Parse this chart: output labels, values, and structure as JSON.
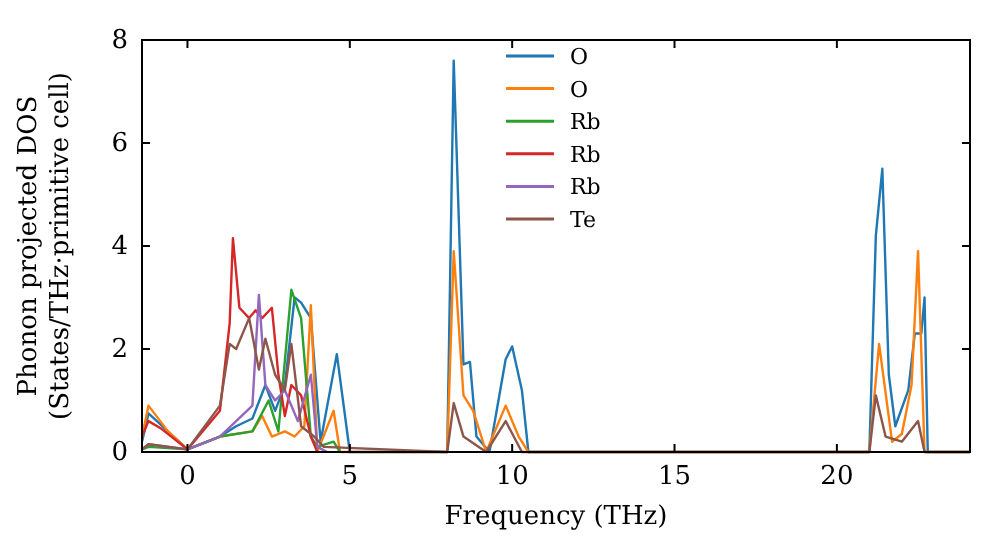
{
  "chart_data": {
    "type": "line",
    "xlabel": "Frequency (THz)",
    "ylabel": "Phonon projected DOS\n(States/THz·primitive cell)",
    "xlim": [
      -1.4,
      24.1
    ],
    "ylim": [
      0,
      8
    ],
    "xticks": [
      0,
      5,
      10,
      15,
      20
    ],
    "yticks": [
      0,
      2,
      4,
      6,
      8
    ],
    "legend": "top",
    "grid": false,
    "line_style": "solid",
    "marker": "none",
    "series": [
      {
        "name": "O",
        "color": "#1f77b4",
        "x": [
          -1.4,
          -1.2,
          -0.6,
          0,
          1,
          1.5,
          2,
          2.4,
          2.7,
          3,
          3.3,
          3.5,
          3.8,
          4.1,
          4.6,
          5,
          8,
          8.2,
          8.5,
          8.7,
          8.9,
          9.3,
          9.8,
          10,
          10.3,
          10.5,
          21,
          21.2,
          21.4,
          21.6,
          21.8,
          22.2,
          22.4,
          22.6,
          22.7,
          22.8,
          24.1
        ],
        "values": [
          0.2,
          0.75,
          0.4,
          0.05,
          0.3,
          0.5,
          0.65,
          1.3,
          0.8,
          1.3,
          3.0,
          2.9,
          2.6,
          0.2,
          1.9,
          0,
          0,
          7.6,
          1.7,
          1.75,
          0.3,
          0,
          1.8,
          2.05,
          1.2,
          0,
          0,
          4.2,
          5.5,
          1.5,
          0.5,
          1.2,
          2.3,
          2.3,
          3.0,
          0,
          0
        ]
      },
      {
        "name": "O",
        "color": "#ff7f0e",
        "x": [
          -1.4,
          -1.2,
          -0.6,
          0,
          1,
          2,
          2.3,
          2.6,
          3,
          3.3,
          3.6,
          3.8,
          4,
          4.5,
          4.7,
          8,
          8.2,
          8.5,
          8.8,
          9.2,
          9.8,
          10.2,
          10.5,
          21,
          21.3,
          21.7,
          22,
          22.3,
          22.5,
          22.7,
          24.1
        ],
        "values": [
          0.3,
          0.9,
          0.4,
          0.05,
          0.3,
          0.4,
          0.7,
          0.3,
          0.4,
          0.3,
          0.5,
          2.85,
          0,
          0.8,
          0,
          0,
          3.9,
          1.1,
          0.8,
          0,
          0.9,
          0.3,
          0,
          0,
          2.1,
          0.2,
          0.35,
          1.3,
          3.9,
          0,
          0
        ]
      },
      {
        "name": "Rb",
        "color": "#2ca02c",
        "x": [
          -1.4,
          -1.2,
          0,
          1,
          2,
          2.5,
          2.8,
          3.2,
          3.5,
          3.8,
          4,
          4.5,
          4.7
        ],
        "values": [
          0.05,
          0.1,
          0.05,
          0.3,
          0.4,
          1.0,
          0.4,
          3.15,
          2.6,
          0.3,
          0.1,
          0.2,
          0
        ]
      },
      {
        "name": "Rb",
        "color": "#d62728",
        "x": [
          -1.4,
          -1.2,
          -0.8,
          0,
          1,
          1.3,
          1.4,
          1.6,
          1.9,
          2.1,
          2.3,
          2.6,
          2.8,
          3,
          3.2,
          3.5,
          3.8,
          4
        ],
        "values": [
          0.3,
          0.6,
          0.45,
          0.05,
          0.8,
          2.5,
          4.15,
          2.8,
          2.6,
          2.75,
          2.6,
          2.8,
          1.5,
          0.7,
          1.3,
          1.1,
          0.3,
          0
        ]
      },
      {
        "name": "Rb",
        "color": "#9467bd",
        "x": [
          -1.4,
          -1.2,
          0,
          1,
          1.5,
          2,
          2.2,
          2.4,
          2.7,
          3,
          3.4,
          3.8,
          4,
          4.3
        ],
        "values": [
          0.05,
          0.15,
          0.05,
          0.3,
          0.6,
          0.9,
          3.05,
          1.3,
          1.0,
          1.2,
          0.6,
          1.5,
          0.1,
          0
        ]
      },
      {
        "name": "Te",
        "color": "#8c564b",
        "x": [
          -1.4,
          -1.2,
          0,
          1,
          1.3,
          1.5,
          1.9,
          2.2,
          2.4,
          2.7,
          3,
          3.2,
          3.5,
          3.9,
          4.2,
          8,
          8.2,
          8.5,
          9.2,
          9.8,
          10.3,
          21,
          21.2,
          21.5,
          22,
          22.5,
          22.7,
          24.1
        ],
        "values": [
          0.05,
          0.15,
          0.05,
          0.9,
          2.1,
          2.0,
          2.6,
          1.6,
          2.2,
          1.5,
          1.2,
          2.1,
          0.5,
          0.3,
          0.1,
          0,
          0.95,
          0.3,
          0,
          0.6,
          0,
          0,
          1.1,
          0.3,
          0.2,
          0.6,
          0,
          0
        ]
      }
    ]
  }
}
